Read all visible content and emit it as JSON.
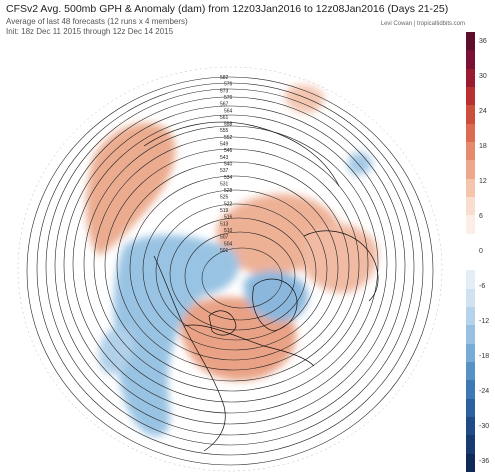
{
  "header": {
    "title": "CFSv2 Avg. 500mb GPH & Anomaly (dam) from 12z03Jan2016 to 12z08Jan2016 (Days 21-25)",
    "subtitle1": "Average of last 48 forecasts (12 runs x 4 members)",
    "subtitle2": "Init: 18z Dec 11 2015 through 12z Dec 14 2015",
    "credit": "Levi Cowan  |  tropicaltidbits.com"
  },
  "map": {
    "projection": "north-polar-stereographic",
    "contour_labels": [
      "582",
      "576",
      "573",
      "570",
      "567",
      "564",
      "561",
      "558",
      "555",
      "552",
      "549",
      "546",
      "543",
      "540",
      "537",
      "534",
      "531",
      "528",
      "525",
      "522",
      "519",
      "516",
      "513",
      "510",
      "507",
      "504",
      "501"
    ],
    "anomaly_regions": [
      {
        "name": "northeast-pacific-alaska-ridge",
        "sign": "positive"
      },
      {
        "name": "eastern-canada-greenland-ridge",
        "sign": "positive"
      },
      {
        "name": "siberia-ridge",
        "sign": "positive"
      },
      {
        "name": "scandinavia-ridge",
        "sign": "positive"
      },
      {
        "name": "western-north-america-trough",
        "sign": "negative"
      },
      {
        "name": "baffin-bay-trough",
        "sign": "negative"
      },
      {
        "name": "aleutian-trough",
        "sign": "negative"
      },
      {
        "name": "central-asia-trough",
        "sign": "negative"
      }
    ]
  },
  "colorbar": {
    "ticks": [
      "36",
      "30",
      "24",
      "18",
      "12",
      "6",
      "0",
      "-6",
      "-12",
      "-18",
      "-24",
      "-30",
      "-36"
    ],
    "colors": [
      "#5e0d2c",
      "#7a1035",
      "#9a1b2f",
      "#b8302f",
      "#cc4f3b",
      "#db6c4f",
      "#e58a6c",
      "#eea78b",
      "#f4c4ad",
      "#f9ddcf",
      "#fbeee6",
      "#ffffff",
      "#ffffff",
      "#e3eef6",
      "#cfe2f0",
      "#b5d3ea",
      "#98c1e1",
      "#77acd6",
      "#5792c6",
      "#3d79b4",
      "#2b619f",
      "#1f4b89",
      "#173a70",
      "#0f2a56"
    ]
  }
}
